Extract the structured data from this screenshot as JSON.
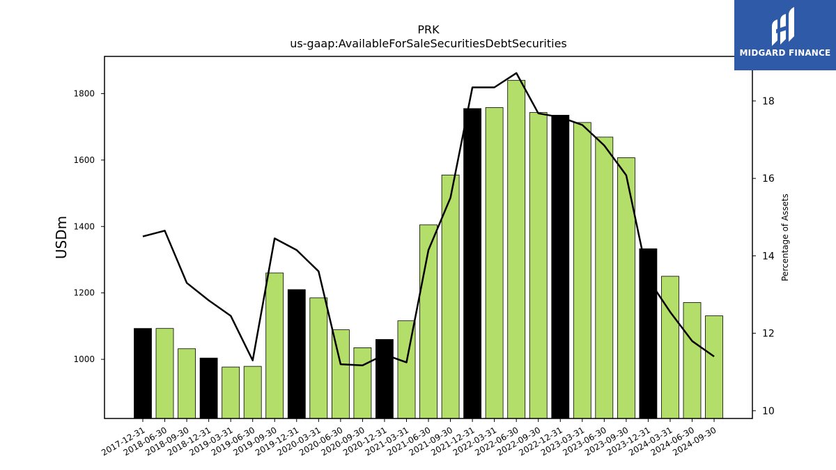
{
  "chart_data": {
    "type": "bar",
    "title": "PRK",
    "subtitle": "us-gaap:AvailableForSaleSecuritiesDebtSecurities",
    "ylabel": "USDm",
    "y2label": "Percentage of Assets",
    "ylim": [
      822,
      1912
    ],
    "y2lim": [
      9.8,
      19.15
    ],
    "yticks": [
      1000,
      1200,
      1400,
      1600,
      1800
    ],
    "y2ticks": [
      10,
      12,
      14,
      16,
      18
    ],
    "grid": false,
    "categories": [
      "2017-12-31",
      "2018-06-30",
      "2018-09-30",
      "2018-12-31",
      "2019-03-31",
      "2019-06-30",
      "2019-09-30",
      "2019-12-31",
      "2020-03-31",
      "2020-06-30",
      "2020-09-30",
      "2020-12-31",
      "2021-03-31",
      "2021-06-30",
      "2021-09-30",
      "2021-12-31",
      "2022-03-31",
      "2022-06-30",
      "2022-09-30",
      "2022-12-31",
      "2023-03-31",
      "2023-06-30",
      "2023-09-30",
      "2023-12-31",
      "2024-03-31",
      "2024-06-30",
      "2024-09-30"
    ],
    "series": [
      {
        "type": "bar",
        "values": [
          1093,
          1093,
          1032,
          1004,
          977,
          979,
          1260,
          1210,
          1185,
          1089,
          1035,
          1060,
          1116,
          1405,
          1555,
          1755,
          1758,
          1840,
          1743,
          1735,
          1713,
          1669,
          1607,
          1333,
          1250,
          1171,
          1131
        ],
        "year_end": [
          true,
          false,
          false,
          true,
          false,
          false,
          false,
          true,
          false,
          false,
          false,
          true,
          false,
          false,
          false,
          true,
          false,
          false,
          false,
          true,
          false,
          false,
          false,
          true,
          false,
          false,
          false
        ]
      },
      {
        "type": "line",
        "axis": "right",
        "values": [
          14.5,
          14.65,
          13.3,
          12.85,
          12.45,
          11.3,
          14.45,
          14.15,
          13.6,
          11.2,
          11.17,
          11.45,
          11.25,
          14.15,
          15.5,
          18.35,
          18.35,
          18.72,
          17.68,
          17.58,
          17.38,
          16.85,
          16.08,
          13.4,
          12.55,
          11.8,
          11.4
        ]
      }
    ],
    "colors": {
      "bar_default": "#b3de69",
      "bar_year_end": "#000000",
      "line": "#000000",
      "bar_edge": "#000000"
    }
  },
  "logo": {
    "text": "MIDGARD FINANCE",
    "background": "#2f5aa8"
  }
}
